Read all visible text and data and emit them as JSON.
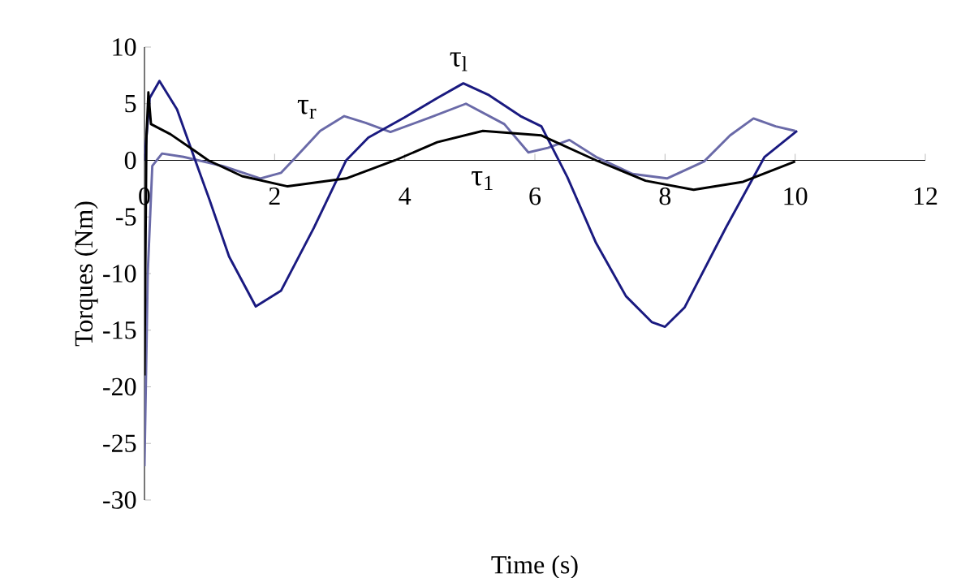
{
  "chart_data": {
    "type": "line",
    "xlabel": "Time (s)",
    "ylabel": "Torques (Nm)",
    "xlim": [
      0,
      12
    ],
    "xticks": [
      0,
      2,
      4,
      6,
      8,
      10,
      12
    ],
    "ylim": [
      -30,
      10
    ],
    "yticks": [
      -30,
      -25,
      -20,
      -15,
      -10,
      -5,
      0,
      5,
      10
    ],
    "grid": false,
    "marker": "none",
    "line_style": "solid",
    "series": [
      {
        "name": "τ$_{r}$",
        "color": "#6a6aa8",
        "x": [
          0,
          0.05,
          0.12,
          0.27,
          0.6,
          1.2,
          1.78,
          2.1,
          2.28,
          2.7,
          3.07,
          3.4,
          3.78,
          4.4,
          4.94,
          5.53,
          5.9,
          6.2,
          6.53,
          6.94,
          7.5,
          8.03,
          8.6,
          9.0,
          9.36,
          9.7,
          10.0
        ],
        "values": [
          -27,
          -10,
          -0.5,
          0.6,
          0.3,
          -0.5,
          -1.6,
          -1.1,
          0,
          2.6,
          3.9,
          3.3,
          2.5,
          3.8,
          5.0,
          3.2,
          0.7,
          1.1,
          1.8,
          0.3,
          -1.2,
          -1.6,
          -0.1,
          2.2,
          3.7,
          3.0,
          2.6
        ]
      },
      {
        "name": "τ$_{l}$",
        "color": "#1a1a80",
        "x": [
          0,
          0.08,
          0.23,
          0.5,
          0.78,
          1.0,
          1.3,
          1.71,
          2.1,
          2.6,
          3.1,
          3.44,
          4.0,
          4.5,
          4.9,
          5.28,
          5.78,
          6.1,
          6.5,
          6.94,
          7.4,
          7.8,
          8.0,
          8.3,
          8.94,
          9.53,
          10.03
        ],
        "values": [
          0,
          5.5,
          7.0,
          4.5,
          0,
          -3.5,
          -8.5,
          -12.9,
          -11.5,
          -6,
          0,
          2,
          3.8,
          5.5,
          6.8,
          5.8,
          3.9,
          3.0,
          -1.5,
          -7.3,
          -12,
          -14.3,
          -14.7,
          -13,
          -5.9,
          0.3,
          2.6
        ]
      },
      {
        "name": "τ$_{1}$",
        "color": "#000000",
        "x": [
          0,
          0.03,
          0.06,
          0.1,
          0.4,
          0.78,
          0.98,
          1.5,
          2.2,
          3.1,
          3.85,
          4.5,
          5.2,
          6.1,
          6.94,
          7.7,
          8.44,
          9.2,
          10.0
        ],
        "values": [
          -19,
          2,
          6,
          3.2,
          2.3,
          0.8,
          0,
          -1.4,
          -2.3,
          -1.6,
          0,
          1.6,
          2.6,
          2.2,
          0,
          -1.8,
          -2.6,
          -1.9,
          -0.1
        ]
      }
    ]
  }
}
